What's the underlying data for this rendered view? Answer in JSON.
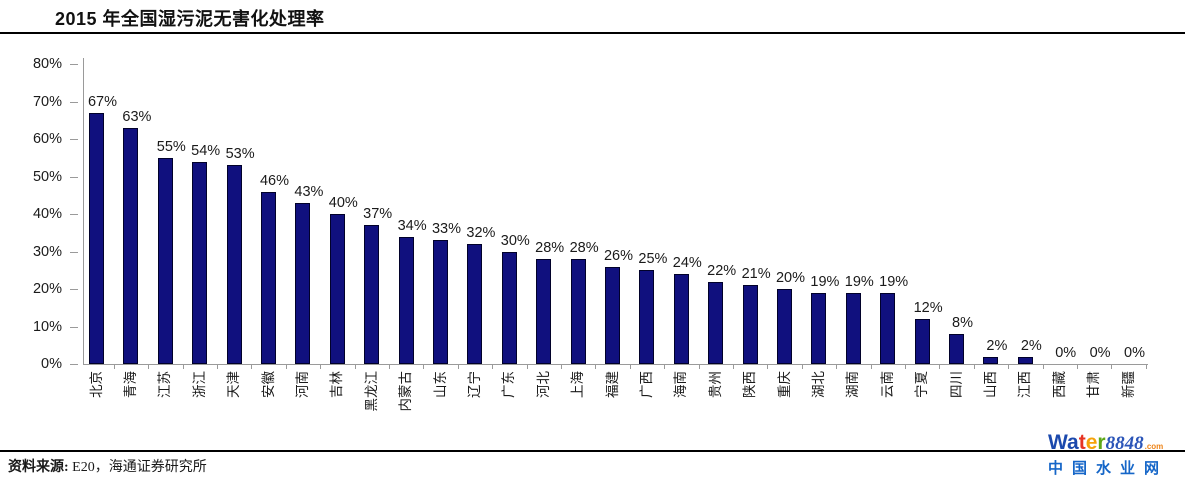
{
  "title": "2015 年全国湿污泥无害化处理率",
  "footer": {
    "source_label": "资料来源:",
    "source_text": " E20，海通证券研究所"
  },
  "logo": {
    "letters": [
      {
        "ch": "W",
        "color": "#1b49ad"
      },
      {
        "ch": "a",
        "color": "#1b49ad"
      },
      {
        "ch": "t",
        "color": "#e63323"
      },
      {
        "ch": "e",
        "color": "#f6a30a"
      },
      {
        "ch": "r",
        "color": "#5ea818"
      }
    ],
    "number": "8848",
    "number_color": "#2b55b8",
    "suffix": ".com",
    "suffix_color": "#ee8418",
    "tagline": "中国水业网",
    "tagline_color": "#1566c8"
  },
  "chart_data": {
    "type": "bar",
    "title": "2015 年全国湿污泥无害化处理率",
    "categories": [
      "北京",
      "青海",
      "江苏",
      "浙江",
      "天津",
      "安徽",
      "河南",
      "吉林",
      "黑龙江",
      "内蒙古",
      "山东",
      "辽宁",
      "广东",
      "河北",
      "上海",
      "福建",
      "广西",
      "海南",
      "贵州",
      "陕西",
      "重庆",
      "湖北",
      "湖南",
      "云南",
      "宁夏",
      "四川",
      "山西",
      "江西",
      "西藏",
      "甘肃",
      "新疆"
    ],
    "values": [
      67,
      63,
      55,
      54,
      53,
      46,
      43,
      40,
      37,
      34,
      33,
      32,
      30,
      28,
      28,
      26,
      25,
      24,
      22,
      21,
      20,
      19,
      19,
      19,
      12,
      8,
      2,
      2,
      0,
      0,
      0
    ],
    "unit": "%",
    "xlabel": "",
    "ylabel": "",
    "ylim": [
      0,
      80
    ],
    "yticks": [
      "0%",
      "10%",
      "20%",
      "30%",
      "40%",
      "50%",
      "60%",
      "70%",
      "80%"
    ],
    "grid": false,
    "legend": false,
    "value_labels": true,
    "bar_color": "#10107E",
    "axis_color": "#9a9a9a"
  }
}
